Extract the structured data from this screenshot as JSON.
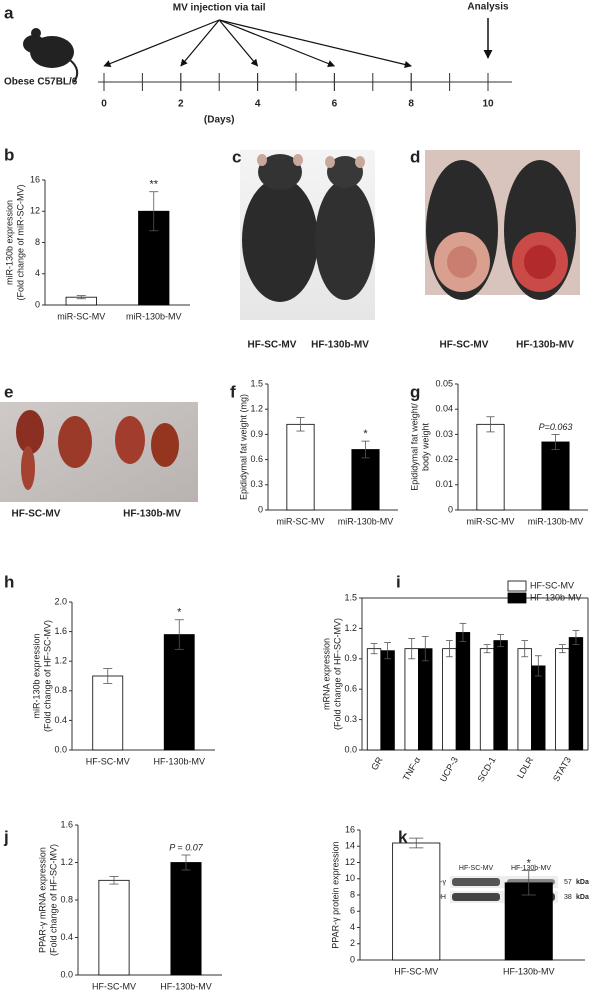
{
  "timeline": {
    "panel": "a",
    "title": "MV injection via tail",
    "analysis_label": "Analysis",
    "mouse_label": "Obese C57BL/6",
    "ticks": [
      0,
      2,
      4,
      6,
      8,
      10
    ],
    "xlabel": "(Days)"
  },
  "photos": [
    {
      "panel": "c",
      "labels": [
        "HF-SC-MV",
        "HF-130b-MV"
      ]
    },
    {
      "panel": "d",
      "labels": [
        "HF-SC-MV",
        "HF-130b-MV"
      ]
    },
    {
      "panel": "e",
      "labels": [
        "HF-SC-MV",
        "HF-130b-MV"
      ]
    }
  ],
  "blot": {
    "columns": [
      "HF-SC-MV",
      "HF-130b-MV"
    ],
    "rows": [
      {
        "name": "PPAR-γ",
        "size": "57",
        "unit": "kDa"
      },
      {
        "name": "GAPDH",
        "size": "38",
        "unit": "kDa"
      }
    ]
  },
  "chart_data": [
    {
      "type": "bar",
      "panel": "b",
      "ylabel": [
        "miR-130b expression",
        "(Fold change of miR-SC-MV)"
      ],
      "categories": [
        "miR-SC-MV",
        "miR-130b-MV"
      ],
      "values": [
        1.0,
        12.0
      ],
      "errors": [
        0.2,
        2.5
      ],
      "colors": [
        "#ffffff",
        "#000000"
      ],
      "annotation": "**",
      "ylim": [
        0,
        16
      ],
      "yticks": [
        0,
        4,
        8,
        12,
        16
      ]
    },
    {
      "type": "bar",
      "panel": "f",
      "ylabel": [
        "Epididymal fat weight (mg)"
      ],
      "categories": [
        "miR-SC-MV",
        "miR-130b-MV"
      ],
      "values": [
        1.02,
        0.72
      ],
      "errors": [
        0.08,
        0.1
      ],
      "colors": [
        "#ffffff",
        "#000000"
      ],
      "annotation": "*",
      "ylim": [
        0,
        1.5
      ],
      "yticks": [
        0,
        0.3,
        0.6,
        0.9,
        1.2,
        1.5
      ]
    },
    {
      "type": "bar",
      "panel": "g",
      "ylabel": [
        "Epididymal fat weight/",
        "body weight"
      ],
      "categories": [
        "miR-SC-MV",
        "miR-130b-MV"
      ],
      "values": [
        0.034,
        0.027
      ],
      "errors": [
        0.003,
        0.003
      ],
      "colors": [
        "#ffffff",
        "#000000"
      ],
      "annotation": "P=0.063",
      "ylim": [
        0,
        0.05
      ],
      "yticks": [
        0,
        0.01,
        0.02,
        0.03,
        0.04,
        0.05
      ]
    },
    {
      "type": "bar",
      "panel": "h",
      "ylabel": [
        "miR-130b expression",
        "(Fold change of HF-SC-MV)"
      ],
      "categories": [
        "HF-SC-MV",
        "HF-130b-MV"
      ],
      "values": [
        1.0,
        1.56
      ],
      "errors": [
        0.1,
        0.2
      ],
      "colors": [
        "#ffffff",
        "#000000"
      ],
      "annotation": "*",
      "ylim": [
        0,
        2.0
      ],
      "yticks": [
        {
          "value": 0,
          "label": "0.0"
        },
        0.4,
        0.8,
        1.2,
        1.6,
        {
          "value": 2,
          "label": "2.0"
        }
      ]
    },
    {
      "type": "grouped-bar",
      "panel": "i",
      "ylabel": [
        "mRNA expression",
        "(Fold change of HF-SC-MV)"
      ],
      "categories": [
        "GR",
        "TNF-α",
        "UCP-3",
        "SCD-1",
        "LDLR",
        "STAT3"
      ],
      "series": [
        {
          "name": "HF-SC-MV",
          "color": "#ffffff",
          "values": [
            1.0,
            1.0,
            1.0,
            1.0,
            1.0,
            1.0
          ],
          "errors": [
            0.05,
            0.1,
            0.08,
            0.04,
            0.08,
            0.04
          ]
        },
        {
          "name": "HF-130b-MV",
          "color": "#000000",
          "values": [
            0.98,
            1.0,
            1.16,
            1.08,
            0.83,
            1.11
          ],
          "errors": [
            0.08,
            0.12,
            0.09,
            0.06,
            0.1,
            0.07
          ]
        }
      ],
      "legend": "top-right",
      "ylim": [
        0,
        1.5
      ],
      "yticks": [
        {
          "value": 0,
          "label": "0.0"
        },
        0.3,
        0.6,
        0.9,
        1.2,
        1.5
      ]
    },
    {
      "type": "bar",
      "panel": "j",
      "ylabel": [
        "PPAR-γ mRNA expression",
        "(Fold change of HF-SC-MV)"
      ],
      "categories": [
        "HF-SC-MV",
        "HF-130b-MV"
      ],
      "values": [
        1.01,
        1.2
      ],
      "errors": [
        0.04,
        0.08
      ],
      "colors": [
        "#ffffff",
        "#000000"
      ],
      "annotation": "P = 0.07",
      "ylim": [
        0,
        1.6
      ],
      "yticks": [
        {
          "value": 0,
          "label": "0.0"
        },
        0.4,
        0.8,
        1.2,
        1.6
      ]
    },
    {
      "type": "bar",
      "panel": "k",
      "ylabel": [
        "PPAR-γ protein expression"
      ],
      "categories": [
        "HF-SC-MV",
        "HF-130b-MV"
      ],
      "values": [
        14.4,
        9.5
      ],
      "errors": [
        0.6,
        1.5
      ],
      "colors": [
        "#ffffff",
        "#000000"
      ],
      "annotation": "*",
      "ylim": [
        0,
        16
      ],
      "yticks": [
        0,
        2,
        4,
        6,
        8,
        10,
        12,
        14,
        16
      ]
    }
  ]
}
